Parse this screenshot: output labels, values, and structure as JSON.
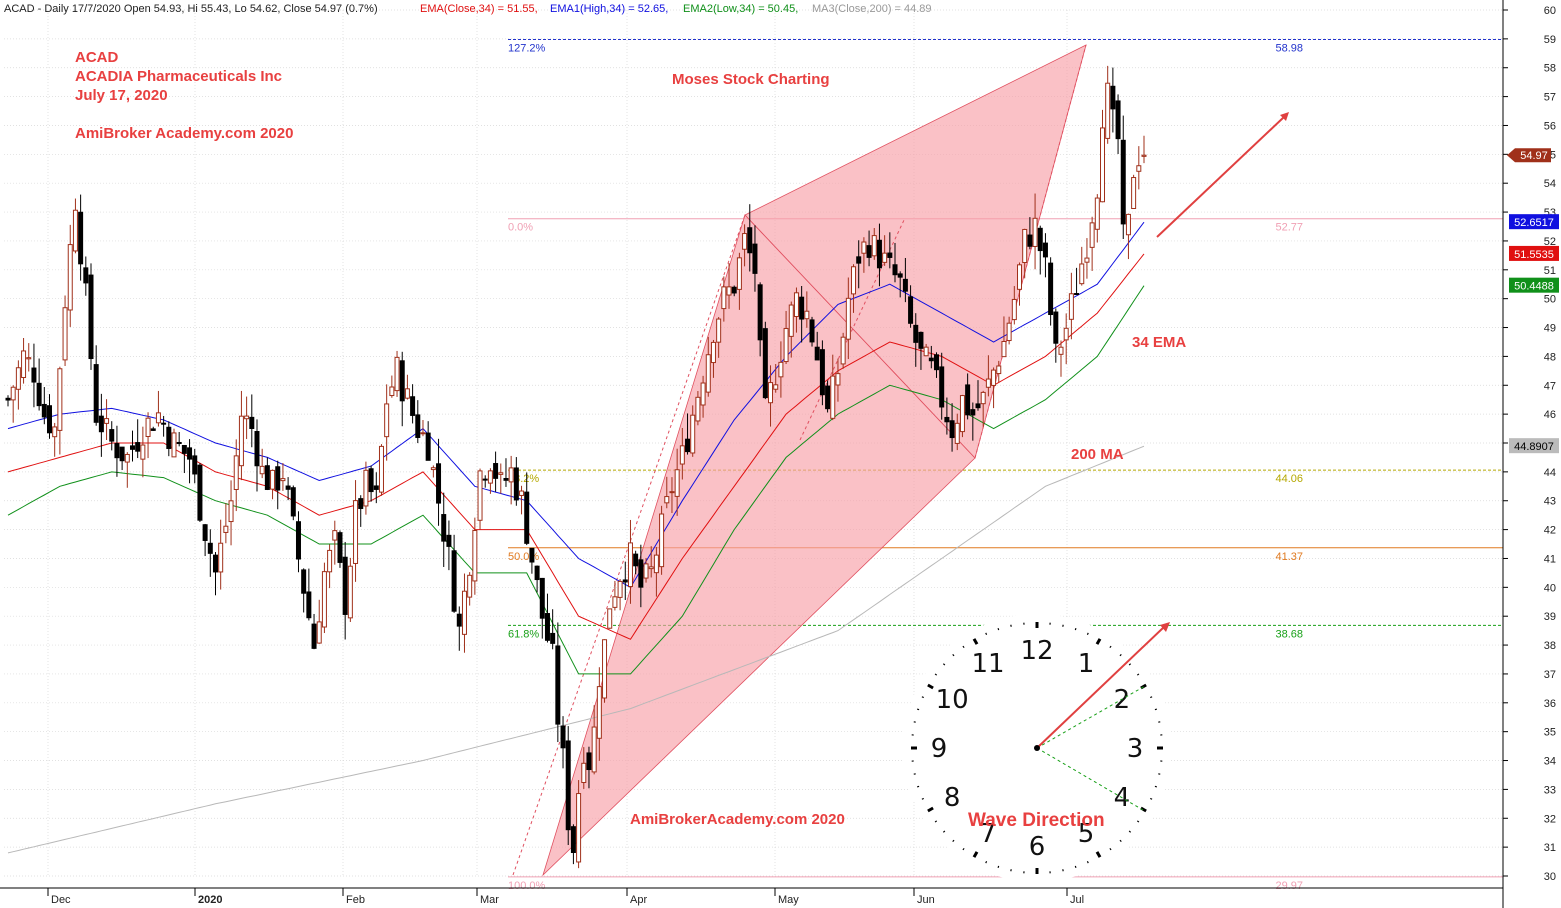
{
  "header": {
    "ticker_line": "ACAD - Daily 17/7/2020 Open 54.93, Hi 55.43, Lo 54.62, Close 54.97 (0.7%)",
    "ema_label": "EMA(Close,34) = 51.55,",
    "ema1_label": "EMA1(High,34) = 52.65,",
    "ema2_label": "EMA2(Low,34) = 50.45,",
    "ma_label": "MA3(Close,200) = 44.89"
  },
  "annotations": {
    "ticker": "ACAD",
    "company": "ACADIA Pharmaceuticals Inc",
    "date": "July 17, 2020",
    "site_top": "AmiBroker Academy.com  2020",
    "brand": "Moses Stock Charting",
    "ema_text": "34 EMA",
    "ma_text": "200 MA",
    "site_bottom": "AmiBrokerAcademy.com  2020",
    "wave": "Wave Direction"
  },
  "fib_levels": [
    {
      "pct": "127.2%",
      "price": 58.98,
      "label": "58.98",
      "color": "#2233cc"
    },
    {
      "pct": "0.0%",
      "price": 52.77,
      "label": "52.77",
      "color": "#f0a0b4"
    },
    {
      "pct": "38.2%",
      "price": 44.06,
      "label": "44.06",
      "color": "#b5a800"
    },
    {
      "pct": "50.0%",
      "price": 41.37,
      "label": "41.37",
      "color": "#e07a20"
    },
    {
      "pct": "61.8%",
      "price": 38.68,
      "label": "38.68",
      "color": "#18a018"
    },
    {
      "pct": "100.0%",
      "price": 29.97,
      "label": "29.97",
      "color": "#f0a0b4"
    }
  ],
  "price_tags": [
    {
      "label": "54.97",
      "price": 54.97,
      "color": "#a0301a"
    },
    {
      "label": "52.6517",
      "price": 52.65,
      "color": "#1010e0"
    },
    {
      "label": "51.5535",
      "price": 51.55,
      "color": "#e01010"
    },
    {
      "label": "50.4488",
      "price": 50.45,
      "color": "#10901a"
    },
    {
      "label": "44.8907",
      "price": 44.89,
      "color": "#bbbbbb"
    }
  ],
  "clock": {
    "numbers": [
      "12",
      "1",
      "2",
      "3",
      "4",
      "5",
      "6",
      "7",
      "8",
      "9",
      "10",
      "11"
    ]
  },
  "chart_data": {
    "type": "candlestick",
    "y_axis": {
      "min": 30,
      "max": 60,
      "ticks": [
        "30",
        "31",
        "32",
        "33",
        "34",
        "35",
        "36",
        "37",
        "38",
        "39",
        "40",
        "41",
        "42",
        "43",
        "44",
        "45",
        "46",
        "47",
        "48",
        "49",
        "50",
        "51",
        "52",
        "53",
        "54",
        "55",
        "56",
        "57",
        "58",
        "59",
        "60"
      ]
    },
    "x_axis": {
      "labels": [
        "Dec",
        "2020",
        "Feb",
        "Mar",
        "Apr",
        "May",
        "Jun",
        "Jul"
      ]
    },
    "series": [
      {
        "name": "EMA(Close,34)",
        "color": "#e01010",
        "value": 51.55
      },
      {
        "name": "EMA1(High,34)",
        "color": "#1010e0",
        "value": 52.65
      },
      {
        "name": "EMA2(Low,34)",
        "color": "#10901a",
        "value": 50.45
      },
      {
        "name": "MA3(Close,200)",
        "color": "#bbbbbb",
        "value": 44.89
      }
    ],
    "last_bar": {
      "open": 54.93,
      "high": 55.43,
      "low": 54.62,
      "close": 54.97
    },
    "price_path": [
      [
        0,
        46.5
      ],
      [
        3,
        48.0
      ],
      [
        5,
        47.5
      ],
      [
        7,
        46.0
      ],
      [
        9,
        45.5
      ],
      [
        11,
        50.0
      ],
      [
        13,
        53.5
      ],
      [
        15,
        50.0
      ],
      [
        17,
        46.0
      ],
      [
        20,
        45.0
      ],
      [
        23,
        44.5
      ],
      [
        26,
        45.5
      ],
      [
        29,
        46.0
      ],
      [
        32,
        45.0
      ],
      [
        35,
        44.5
      ],
      [
        38,
        42.0
      ],
      [
        40,
        40.5
      ],
      [
        43,
        43.0
      ],
      [
        45,
        46.0
      ],
      [
        47,
        45.5
      ],
      [
        49,
        44.0
      ],
      [
        51,
        43.5
      ],
      [
        53,
        44.0
      ],
      [
        55,
        42.0
      ],
      [
        57,
        40.0
      ],
      [
        59,
        38.0
      ],
      [
        61,
        40.5
      ],
      [
        63,
        41.5
      ],
      [
        65,
        39.5
      ],
      [
        67,
        42.5
      ],
      [
        69,
        43.5
      ],
      [
        71,
        43.0
      ],
      [
        73,
        46.5
      ],
      [
        75,
        47.5
      ],
      [
        77,
        46.5
      ],
      [
        79,
        45.5
      ],
      [
        81,
        45.0
      ],
      [
        83,
        43.0
      ],
      [
        85,
        41.0
      ],
      [
        87,
        38.5
      ],
      [
        89,
        41.0
      ],
      [
        91,
        44.0
      ],
      [
        93,
        44.5
      ],
      [
        95,
        43.5
      ],
      [
        97,
        44.0
      ],
      [
        99,
        43.0
      ],
      [
        101,
        41.0
      ],
      [
        103,
        39.0
      ],
      [
        105,
        37.5
      ],
      [
        106,
        35.5
      ],
      [
        107,
        34.0
      ],
      [
        108,
        32.0
      ],
      [
        109,
        31.0
      ],
      [
        110,
        33.0
      ],
      [
        111,
        34.5
      ],
      [
        112,
        34.0
      ],
      [
        113,
        35.0
      ],
      [
        114,
        37.0
      ],
      [
        115,
        38.0
      ],
      [
        116,
        39.5
      ],
      [
        118,
        40.5
      ],
      [
        120,
        41.0
      ],
      [
        122,
        40.0
      ],
      [
        124,
        40.5
      ],
      [
        126,
        42.0
      ],
      [
        128,
        43.5
      ],
      [
        130,
        44.5
      ],
      [
        132,
        46.0
      ],
      [
        134,
        47.5
      ],
      [
        136,
        49.0
      ],
      [
        138,
        50.0
      ],
      [
        140,
        50.5
      ],
      [
        142,
        52.0
      ],
      [
        144,
        51.0
      ],
      [
        145,
        48.0
      ],
      [
        146,
        46.0
      ],
      [
        148,
        47.5
      ],
      [
        150,
        49.0
      ],
      [
        152,
        50.0
      ],
      [
        154,
        49.5
      ],
      [
        156,
        48.0
      ],
      [
        158,
        46.0
      ],
      [
        160,
        47.5
      ],
      [
        162,
        50.0
      ],
      [
        164,
        51.5
      ],
      [
        166,
        52.0
      ],
      [
        168,
        51.5
      ],
      [
        170,
        51.0
      ],
      [
        172,
        50.5
      ],
      [
        174,
        49.0
      ],
      [
        176,
        48.0
      ],
      [
        178,
        47.5
      ],
      [
        180,
        46.5
      ],
      [
        182,
        45.5
      ],
      [
        184,
        46.5
      ],
      [
        186,
        46.0
      ],
      [
        188,
        46.5
      ],
      [
        190,
        47.5
      ],
      [
        192,
        48.5
      ],
      [
        194,
        50.0
      ],
      [
        196,
        52.0
      ],
      [
        198,
        52.5
      ],
      [
        200,
        51.0
      ],
      [
        201,
        49.5
      ],
      [
        202,
        48.0
      ],
      [
        203,
        48.5
      ],
      [
        204,
        49.0
      ],
      [
        206,
        50.5
      ],
      [
        208,
        52.0
      ],
      [
        210,
        54.0
      ],
      [
        211,
        56.5
      ],
      [
        212,
        57.0
      ],
      [
        213,
        56.0
      ],
      [
        214,
        55.5
      ],
      [
        215,
        52.0
      ],
      [
        216,
        52.5
      ],
      [
        217,
        54.5
      ],
      [
        218,
        55.0
      ],
      [
        219,
        54.97
      ]
    ],
    "ema_path": [
      [
        0,
        44.0
      ],
      [
        10,
        44.5
      ],
      [
        20,
        45.0
      ],
      [
        30,
        45.0
      ],
      [
        40,
        44.0
      ],
      [
        50,
        43.5
      ],
      [
        60,
        42.5
      ],
      [
        70,
        43.0
      ],
      [
        80,
        44.0
      ],
      [
        90,
        42.0
      ],
      [
        100,
        42.0
      ],
      [
        110,
        39.0
      ],
      [
        120,
        38.2
      ],
      [
        130,
        41.0
      ],
      [
        140,
        43.5
      ],
      [
        150,
        46.0
      ],
      [
        160,
        47.5
      ],
      [
        170,
        48.5
      ],
      [
        180,
        48.0
      ],
      [
        190,
        47.0
      ],
      [
        200,
        48.0
      ],
      [
        210,
        49.5
      ],
      [
        219,
        51.55
      ]
    ],
    "ema1_path": [
      [
        0,
        45.5
      ],
      [
        10,
        46.0
      ],
      [
        20,
        46.2
      ],
      [
        30,
        45.8
      ],
      [
        40,
        45.0
      ],
      [
        50,
        44.5
      ],
      [
        60,
        43.7
      ],
      [
        70,
        44.2
      ],
      [
        80,
        45.5
      ],
      [
        90,
        43.5
      ],
      [
        100,
        43.0
      ],
      [
        110,
        41.0
      ],
      [
        120,
        40.0
      ],
      [
        130,
        43.0
      ],
      [
        140,
        45.8
      ],
      [
        150,
        48.0
      ],
      [
        160,
        49.8
      ],
      [
        170,
        50.5
      ],
      [
        180,
        49.5
      ],
      [
        190,
        48.5
      ],
      [
        200,
        49.5
      ],
      [
        210,
        50.5
      ],
      [
        219,
        52.65
      ]
    ],
    "ema2_path": [
      [
        0,
        42.5
      ],
      [
        10,
        43.5
      ],
      [
        20,
        44.0
      ],
      [
        30,
        43.8
      ],
      [
        40,
        43.0
      ],
      [
        50,
        42.5
      ],
      [
        60,
        41.5
      ],
      [
        70,
        41.5
      ],
      [
        80,
        42.5
      ],
      [
        90,
        40.5
      ],
      [
        100,
        40.5
      ],
      [
        110,
        37.0
      ],
      [
        120,
        37.0
      ],
      [
        130,
        39.0
      ],
      [
        140,
        42.0
      ],
      [
        150,
        44.5
      ],
      [
        160,
        46.0
      ],
      [
        170,
        47.0
      ],
      [
        180,
        46.5
      ],
      [
        190,
        45.5
      ],
      [
        200,
        46.5
      ],
      [
        210,
        48.0
      ],
      [
        219,
        50.45
      ]
    ],
    "ma_path": [
      [
        0,
        30.8
      ],
      [
        40,
        32.5
      ],
      [
        80,
        34.0
      ],
      [
        120,
        35.8
      ],
      [
        160,
        38.5
      ],
      [
        180,
        41.0
      ],
      [
        200,
        43.5
      ],
      [
        219,
        44.89
      ]
    ]
  }
}
